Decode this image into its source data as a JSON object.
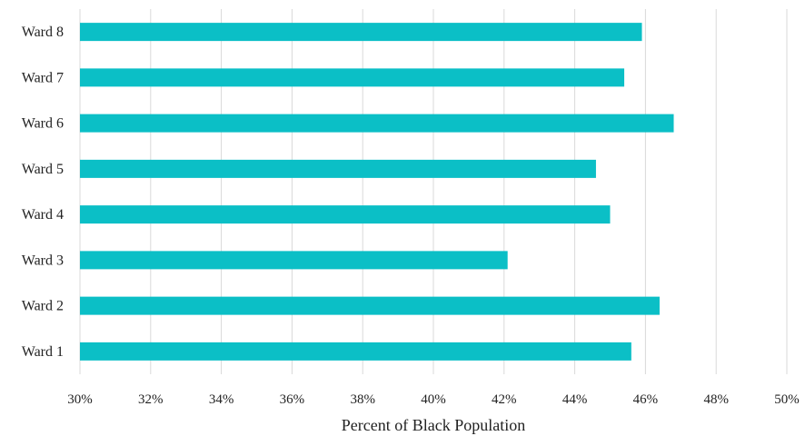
{
  "chart_data": {
    "type": "bar",
    "orientation": "horizontal",
    "categories": [
      "Ward 1",
      "Ward 2",
      "Ward 3",
      "Ward 4",
      "Ward 5",
      "Ward 6",
      "Ward 7",
      "Ward 8"
    ],
    "values": [
      45.6,
      46.4,
      42.1,
      45.0,
      44.6,
      46.8,
      45.4,
      45.9
    ],
    "x_ticks": [
      "30%",
      "32%",
      "34%",
      "36%",
      "38%",
      "40%",
      "42%",
      "44%",
      "46%",
      "48%",
      "50%"
    ],
    "xlabel": "Percent of Black Population",
    "ylabel": "",
    "xlim": [
      30,
      50
    ],
    "grid": "vertical",
    "bar_color": "#0bbfc6"
  }
}
